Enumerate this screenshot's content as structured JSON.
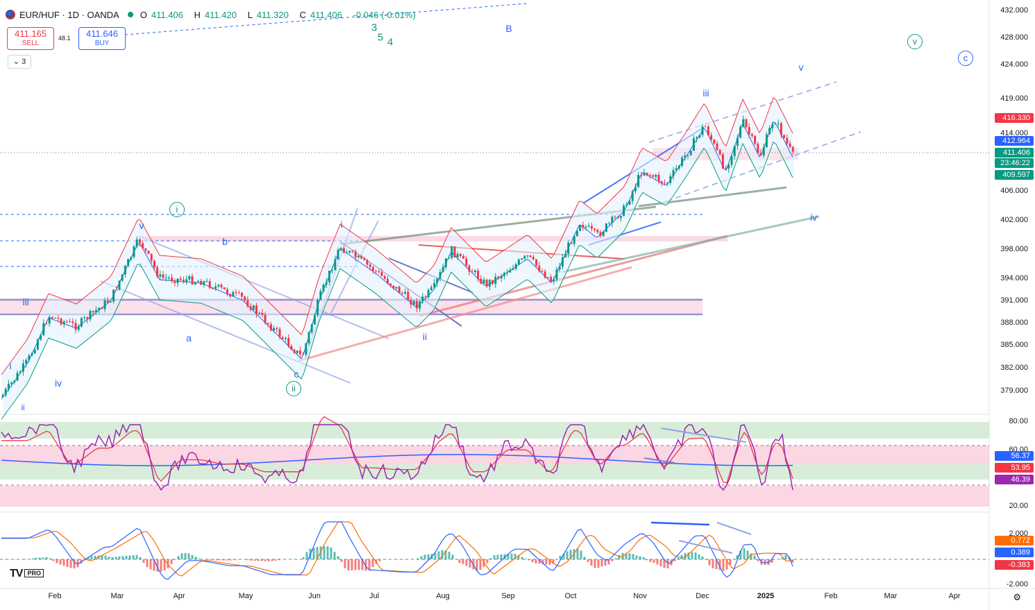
{
  "header": {
    "symbol": "EUR/HUF · 1D · OANDA",
    "ohlc": {
      "o_label": "O",
      "o_value": "411.406",
      "h_label": "H",
      "h_value": "411.420",
      "l_label": "L",
      "l_value": "411.320",
      "c_label": "C",
      "c_value": "411.406",
      "change": "-0.046 (-0.01%)"
    }
  },
  "trade": {
    "sell_price": "411.165",
    "sell_label": "SELL",
    "spread": "48.1",
    "buy_price": "411.646",
    "buy_label": "BUY"
  },
  "indicator_toggle": "3",
  "price_axis": [
    "432.000",
    "428.000",
    "424.000",
    "419.000",
    "414.000",
    "406.000",
    "402.000",
    "398.000",
    "394.000",
    "391.000",
    "388.000",
    "385.000",
    "382.000",
    "379.000"
  ],
  "price_labels": {
    "upper_band": "416.330",
    "mid_band": "412.964",
    "last_price": "411.406",
    "countdown": "23:46:22",
    "lower_band": "409.597"
  },
  "rsi_axis": [
    "80.00",
    "60.00",
    "20.00"
  ],
  "rsi_labels": {
    "ma": "56.37",
    "rsi_ma": "53.95",
    "rsi": "46.39"
  },
  "macd_axis": [
    "2.000",
    "-2.000"
  ],
  "macd_labels": {
    "signal": "0.772",
    "macd": "0.389",
    "hist": "-0.383"
  },
  "time_axis": [
    "Feb",
    "Mar",
    "Apr",
    "May",
    "Jun",
    "Jul",
    "Aug",
    "Sep",
    "Oct",
    "Nov",
    "Dec",
    "2025",
    "Feb",
    "Mar",
    "Apr"
  ],
  "wave_labels": {
    "top_3": "3",
    "top_5": "5",
    "top_4": "4",
    "top_B": "B",
    "circle_v": "v",
    "circle_c": "c",
    "circle_i": "i",
    "circle_ii": "ii",
    "v_right": "v",
    "iii_right": "iii",
    "iv_right": "iv",
    "i_left": "i",
    "ii_left": "ii",
    "iii_left": "iii",
    "iv_left": "iv",
    "v_mar": "v",
    "b_apr": "b",
    "a_apr": "a",
    "c_may": "c",
    "i_jun": "i",
    "ii_jul": "ii"
  },
  "branding": {
    "logo": "TV",
    "plan": "PRO"
  },
  "colors": {
    "up": "#089981",
    "down": "#f23645",
    "accent": "#2962ff",
    "rsi": "#9c27b0",
    "macd": "#2962ff",
    "signal": "#ff6d00"
  }
}
